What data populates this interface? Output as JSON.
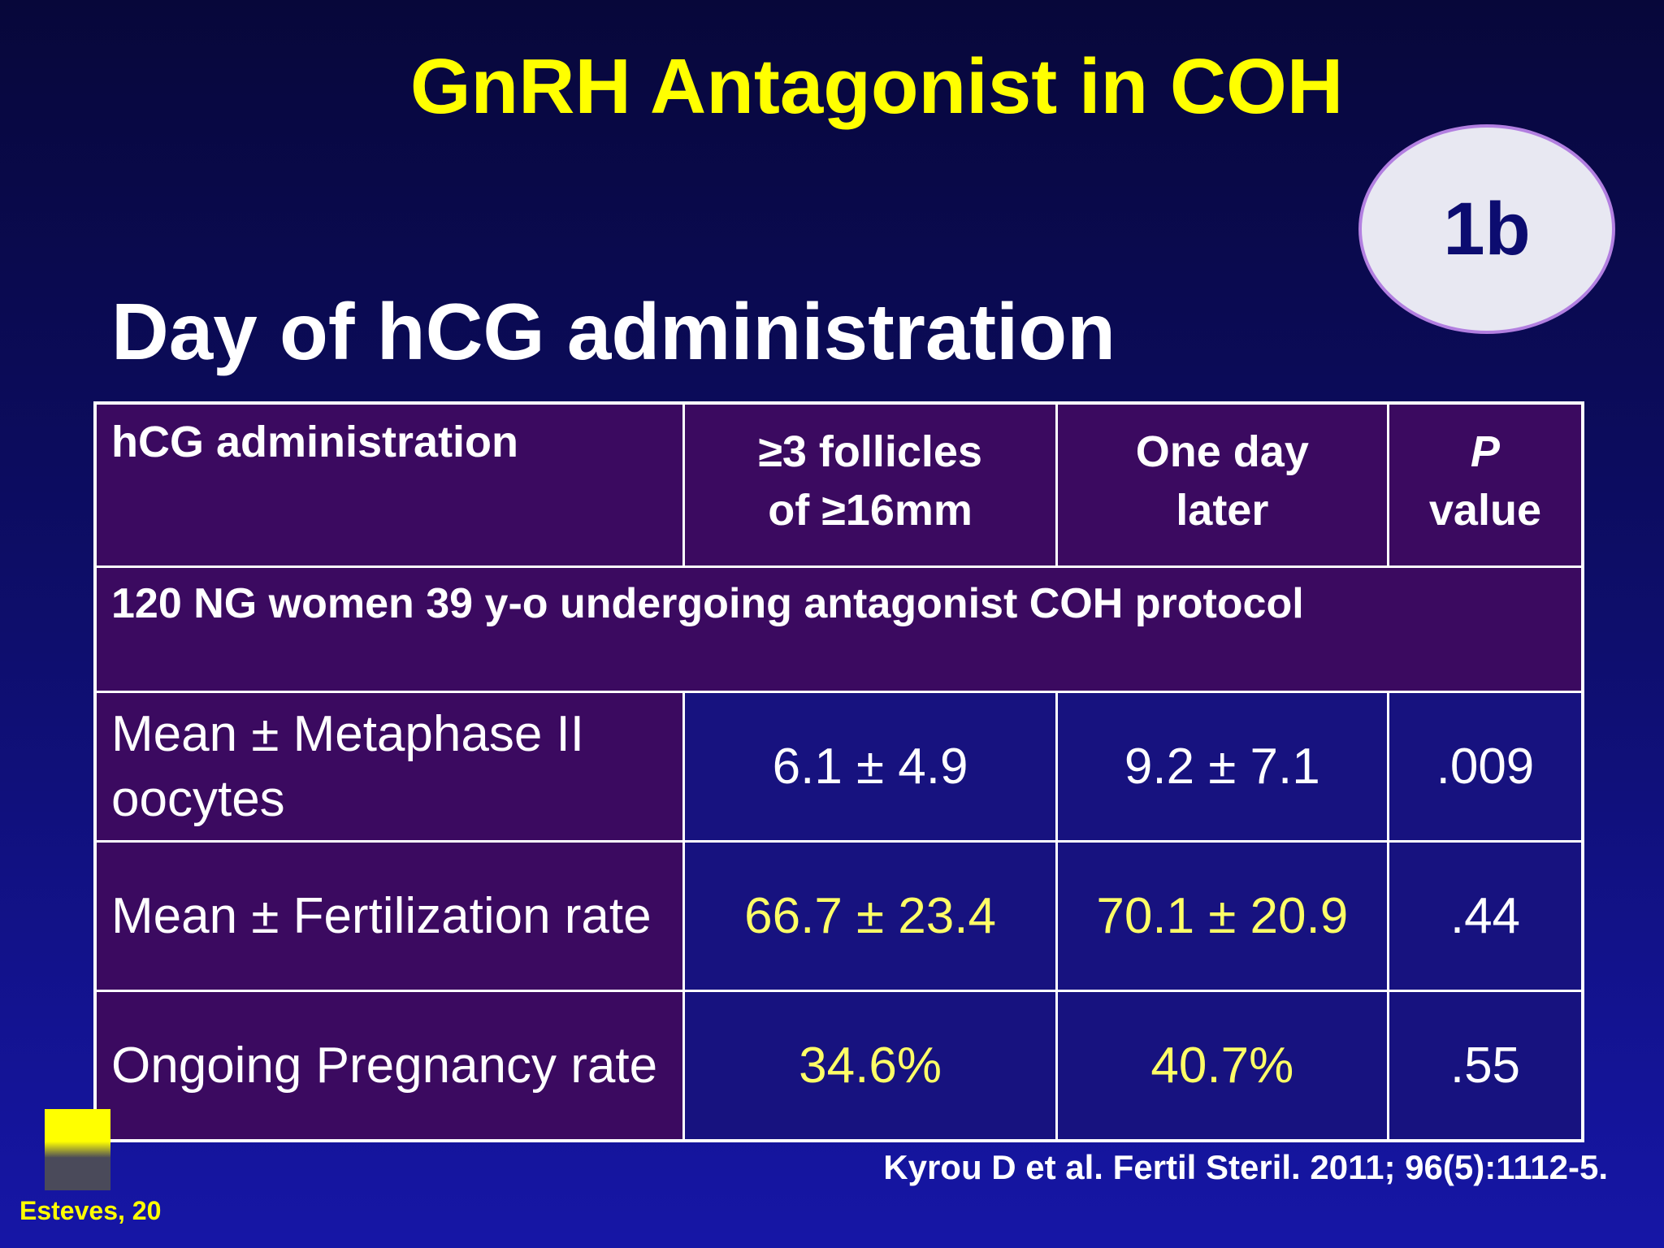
{
  "title": "GnRH Antagonist in COH",
  "badge": "1b",
  "subtitle": "Day of hCG administration",
  "table": {
    "header": [
      "hCG administration",
      "≥3 follicles of ≥16mm",
      "One day later",
      {
        "symbol": "P",
        "text": "value"
      }
    ],
    "group_row": "120 NG women 39 y-o undergoing antagonist COH protocol",
    "rows": [
      [
        "Mean ± Metaphase II oocytes",
        "6.1 ± 4.9",
        "9.2 ± 7.1",
        ".009"
      ],
      [
        "Mean ± Fertilization rate",
        "66.7 ± 23.4",
        "70.1 ± 20.9",
        ".44"
      ],
      [
        "Ongoing Pregnancy rate",
        "34.6%",
        "40.7%",
        ".55"
      ]
    ]
  },
  "citation": "Kyrou D et al. Fertil Steril. 2011; 96(5):1112-5.",
  "footer": "Esteves, 20"
}
